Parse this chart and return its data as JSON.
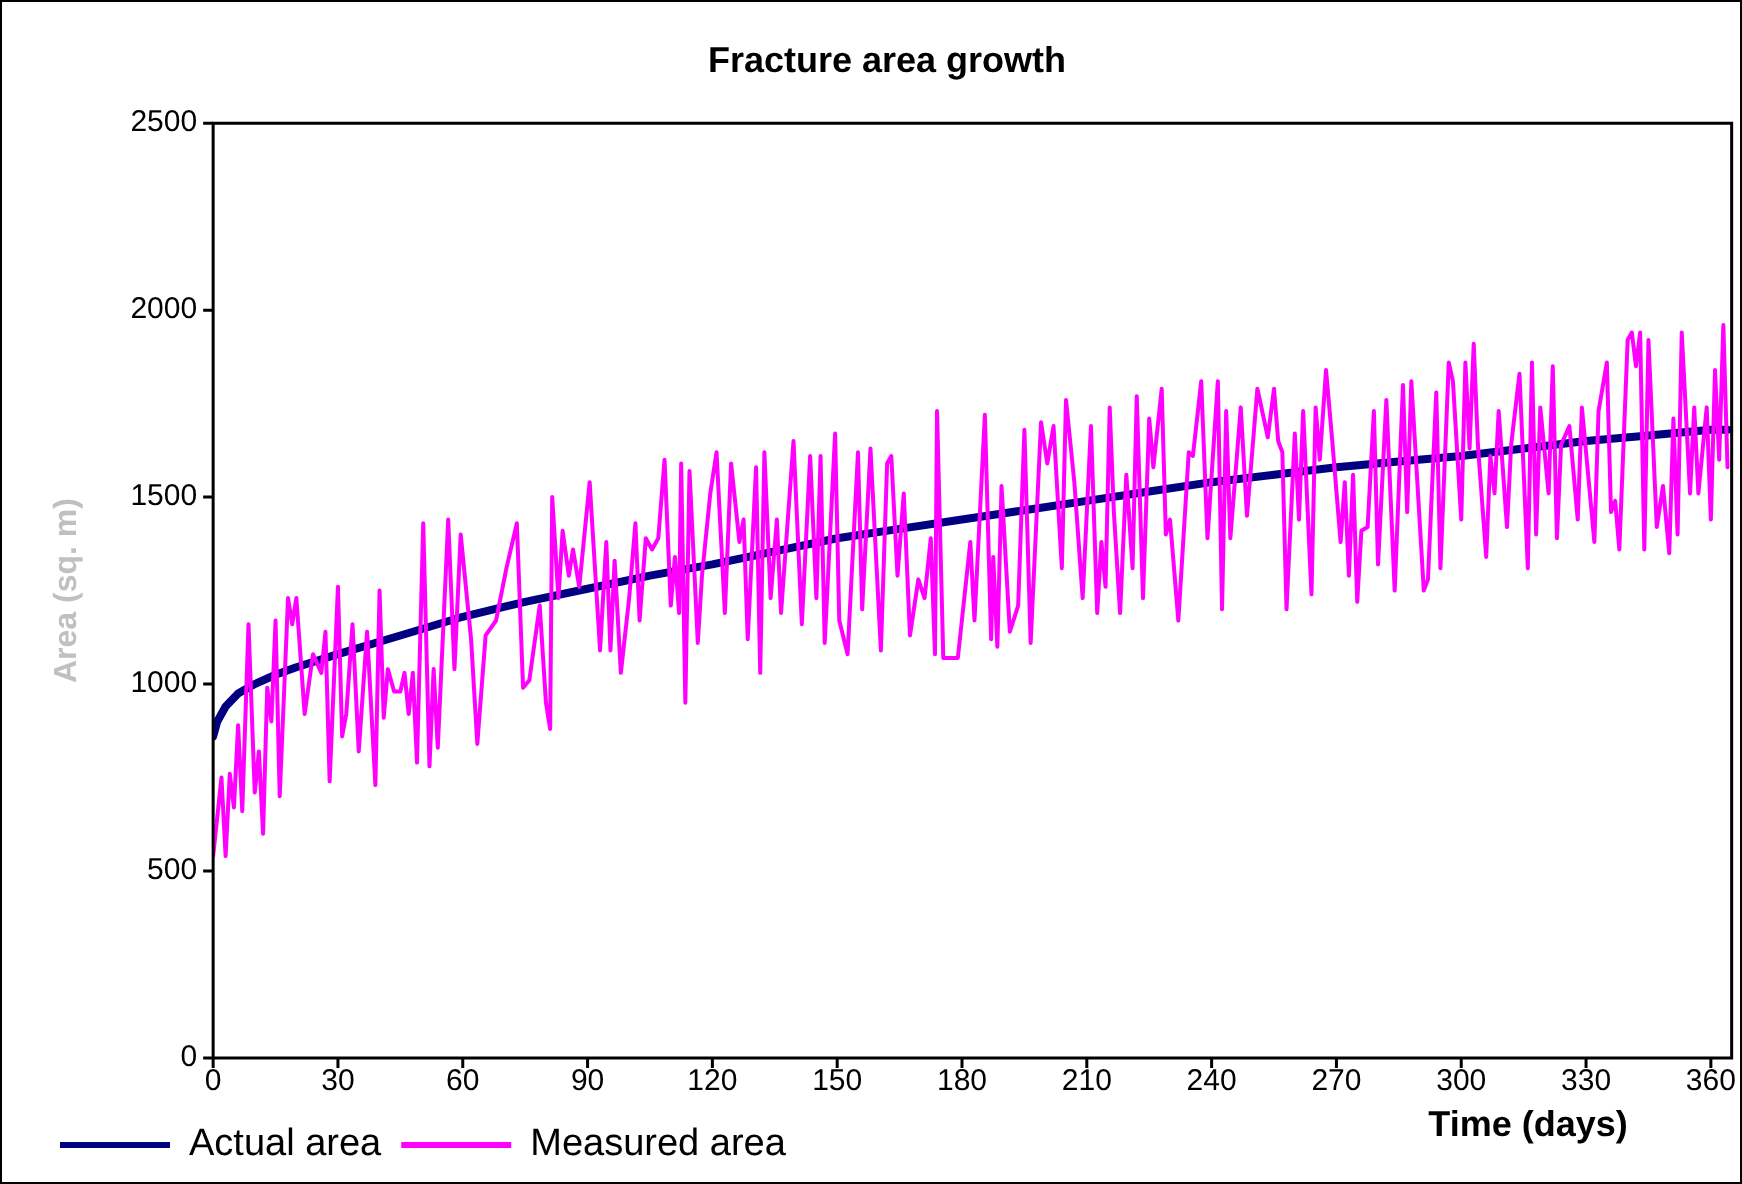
{
  "chart_data": {
    "type": "line",
    "title": "Fracture area growth",
    "xlabel": "Time (days)",
    "ylabel": "Area (sq. m)",
    "xlim": [
      0,
      365
    ],
    "xticks": [
      0,
      30,
      60,
      90,
      120,
      150,
      180,
      210,
      240,
      270,
      300,
      330,
      360
    ],
    "ylim": [
      0,
      2500
    ],
    "yticks": [
      0,
      500,
      1000,
      1500,
      2000,
      2500
    ],
    "grid": false,
    "legend": "bottom left",
    "marker": "none",
    "line_style": "solid",
    "series": [
      {
        "name": "Actual area",
        "color": "#000080",
        "x": [
          0,
          1,
          3,
          6,
          10,
          15,
          20,
          30,
          45,
          60,
          75,
          90,
          105,
          120,
          135,
          150,
          165,
          180,
          195,
          210,
          225,
          240,
          255,
          270,
          285,
          300,
          315,
          330,
          345,
          360,
          364
        ],
        "values": [
          860,
          900,
          940,
          975,
          1000,
          1025,
          1045,
          1080,
          1130,
          1180,
          1220,
          1255,
          1290,
          1320,
          1355,
          1390,
          1415,
          1440,
          1465,
          1490,
          1515,
          1540,
          1560,
          1580,
          1595,
          1610,
          1630,
          1650,
          1665,
          1680,
          1680
        ]
      },
      {
        "name": "Measured area",
        "color": "#ff00ff",
        "x": [
          0,
          2,
          3,
          4,
          5,
          6,
          7,
          8.5,
          10,
          11,
          12,
          13,
          14,
          15,
          16,
          18,
          19,
          20,
          22,
          24,
          26,
          27,
          28,
          30,
          31,
          32,
          33.5,
          35,
          37,
          39,
          40,
          41,
          42,
          43.5,
          45,
          46,
          47,
          48,
          49,
          50.5,
          52,
          53,
          54,
          56.5,
          58,
          59.5,
          62,
          63.5,
          65.5,
          68,
          70.5,
          73,
          74.5,
          76,
          78.5,
          80,
          81,
          81.5,
          83,
          84,
          85.5,
          86.5,
          88,
          90.5,
          93,
          94.5,
          95.5,
          96.5,
          98,
          100,
          101.5,
          102.5,
          104,
          105.5,
          107,
          108.5,
          110,
          111,
          112,
          112.5,
          113.5,
          114.5,
          116.5,
          117.5,
          119.5,
          121,
          123,
          124.5,
          126.5,
          127.5,
          128.5,
          130.5,
          131.5,
          132.5,
          134,
          135.5,
          136.5,
          139.5,
          141.5,
          143.5,
          145,
          146,
          147,
          149.5,
          150.5,
          152.5,
          155,
          156,
          158,
          160.5,
          162,
          163,
          164.5,
          166,
          167.5,
          169.5,
          171,
          172.5,
          173.5,
          174,
          175.5,
          179,
          182,
          183,
          185.5,
          187,
          187.5,
          188.5,
          189.5,
          191.5,
          193.5,
          195,
          196.5,
          199,
          200.5,
          202,
          204,
          205,
          207,
          209,
          211,
          212.5,
          213.5,
          214.5,
          215.5,
          216.5,
          218,
          219.5,
          221,
          222,
          223.5,
          225,
          226,
          228,
          229,
          230,
          232,
          234.5,
          235.5,
          237.5,
          239,
          241.5,
          242.5,
          243.5,
          244.5,
          247,
          248.5,
          251,
          253.5,
          255,
          256,
          257,
          258,
          260,
          261,
          262,
          264,
          265,
          266,
          267.5,
          269,
          271,
          272,
          273,
          274,
          275,
          276,
          277.5,
          279,
          280,
          282,
          284,
          286,
          287,
          288,
          291,
          292,
          294,
          295,
          297,
          298,
          300,
          301,
          302,
          303,
          304,
          306,
          307,
          308,
          309,
          311,
          312,
          314,
          316,
          317,
          318,
          319,
          321,
          322,
          323,
          324,
          326,
          328,
          329,
          332,
          333,
          335,
          336,
          337,
          338,
          340,
          341,
          342,
          343,
          344,
          345,
          347,
          348.5,
          350,
          351,
          352,
          353,
          355,
          356,
          357,
          359,
          360,
          361,
          362,
          363,
          364
        ],
        "values": [
          540,
          750,
          540,
          760,
          670,
          890,
          660,
          1160,
          710,
          820,
          600,
          990,
          900,
          1170,
          700,
          1230,
          1160,
          1230,
          920,
          1080,
          1030,
          1140,
          740,
          1260,
          860,
          920,
          1160,
          820,
          1140,
          730,
          1250,
          910,
          1040,
          980,
          980,
          1030,
          920,
          1030,
          790,
          1430,
          780,
          1040,
          830,
          1440,
          1040,
          1400,
          1120,
          840,
          1130,
          1170,
          1310,
          1430,
          990,
          1010,
          1210,
          950,
          880,
          1500,
          1230,
          1410,
          1290,
          1360,
          1260,
          1540,
          1090,
          1380,
          1090,
          1330,
          1030,
          1230,
          1430,
          1170,
          1390,
          1360,
          1390,
          1600,
          1210,
          1340,
          1190,
          1590,
          950,
          1570,
          1110,
          1290,
          1510,
          1620,
          1190,
          1590,
          1380,
          1440,
          1120,
          1580,
          1030,
          1620,
          1230,
          1440,
          1190,
          1650,
          1160,
          1610,
          1230,
          1610,
          1110,
          1670,
          1170,
          1080,
          1620,
          1200,
          1630,
          1090,
          1590,
          1610,
          1290,
          1510,
          1130,
          1280,
          1230,
          1390,
          1080,
          1730,
          1070,
          1070,
          1380,
          1170,
          1720,
          1120,
          1340,
          1100,
          1530,
          1140,
          1210,
          1680,
          1110,
          1700,
          1590,
          1690,
          1310,
          1760,
          1540,
          1230,
          1690,
          1190,
          1380,
          1260,
          1740,
          1460,
          1190,
          1560,
          1310,
          1770,
          1230,
          1710,
          1580,
          1790,
          1400,
          1440,
          1170,
          1620,
          1610,
          1810,
          1390,
          1810,
          1200,
          1730,
          1390,
          1740,
          1450,
          1790,
          1660,
          1790,
          1650,
          1620,
          1200,
          1670,
          1440,
          1730,
          1240,
          1740,
          1600,
          1840,
          1650,
          1380,
          1540,
          1290,
          1560,
          1220,
          1410,
          1420,
          1730,
          1320,
          1760,
          1250,
          1800,
          1460,
          1810,
          1250,
          1280,
          1780,
          1310,
          1860,
          1810,
          1440,
          1860,
          1630,
          1910,
          1640,
          1340,
          1610,
          1510,
          1730,
          1420,
          1640,
          1830,
          1310,
          1860,
          1400,
          1740,
          1510,
          1850,
          1390,
          1640,
          1690,
          1440,
          1740,
          1380,
          1730,
          1860,
          1460,
          1490,
          1360,
          1920,
          1940,
          1850,
          1940,
          1360,
          1920,
          1420,
          1530,
          1350,
          1710,
          1400,
          1940,
          1510,
          1740,
          1510,
          1740,
          1440,
          1840,
          1600,
          1960,
          1580
        ]
      }
    ]
  }
}
